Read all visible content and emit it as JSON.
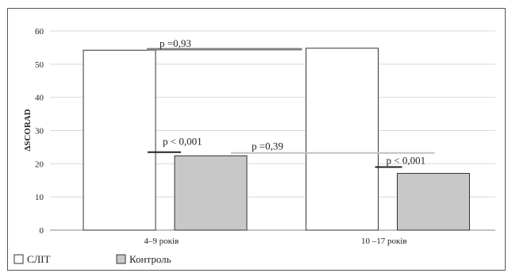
{
  "chart_data": {
    "type": "bar",
    "ylabel": "ΔSCORAD",
    "ylim": [
      0,
      60
    ],
    "y_ticks": [
      "0",
      "10",
      "20",
      "30",
      "40",
      "50",
      "60"
    ],
    "grid": true,
    "categories": [
      "4–9 років",
      "10 –17 років"
    ],
    "series": [
      {
        "name": "СЛІТ",
        "values": [
          54.2,
          54.8
        ],
        "color": "#ffffff"
      },
      {
        "name": "Контроль",
        "values": [
          22.4,
          17.1
        ],
        "color": "#c8c8c8"
      }
    ],
    "legend_position": "bottom-left",
    "annotations": [
      {
        "text": "p =0,93",
        "kind": "between-group",
        "bar_value": 54.5,
        "line_color": "#808080"
      },
      {
        "text": "p < 0,001",
        "kind": "within-group",
        "group": "4–9 років",
        "line_value": 23.5,
        "line_color": "#222222"
      },
      {
        "text": "p =0,39",
        "kind": "between-group",
        "line_value": 23.5,
        "line_color": "#c0c0c0"
      },
      {
        "text": "p < 0,001",
        "kind": "within-group",
        "group": "10 –17 років",
        "line_value": 19.0,
        "line_color": "#222222"
      }
    ]
  }
}
